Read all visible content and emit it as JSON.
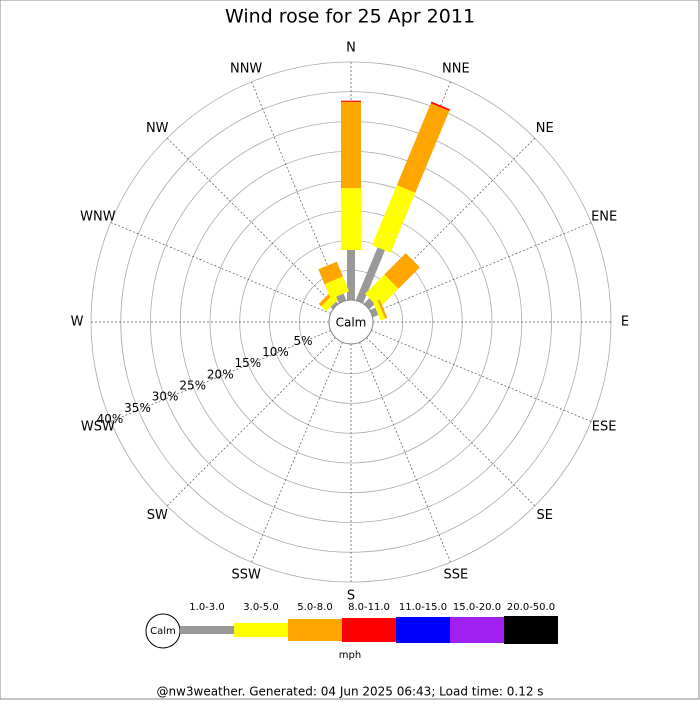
{
  "chart_data": {
    "type": "rose",
    "title": "Wind rose for 25 Apr 2011",
    "categories": [
      "N",
      "NNE",
      "NE",
      "ENE",
      "E",
      "ESE",
      "SE",
      "SSE",
      "S",
      "SSW",
      "SW",
      "WSW",
      "W",
      "WNW",
      "NW",
      "NNW"
    ],
    "center_label": "Calm",
    "unit": "mph",
    "rlim": [
      0,
      40
    ],
    "rticks": [
      {
        "value": 5,
        "label": "5%"
      },
      {
        "value": 10,
        "label": "10%"
      },
      {
        "value": 15,
        "label": "15%"
      },
      {
        "value": 20,
        "label": "20%"
      },
      {
        "value": 25,
        "label": "25%"
      },
      {
        "value": 30,
        "label": "30%"
      },
      {
        "value": 35,
        "label": "35%"
      },
      {
        "value": 40,
        "label": "40%"
      }
    ],
    "series": [
      {
        "name": "1.0-3.0",
        "color": "#999999",
        "values": [
          8.4,
          9.6,
          1.3,
          1,
          0,
          0,
          0,
          0,
          0,
          0,
          0,
          0,
          0,
          0,
          0.5,
          1.2
        ]
      },
      {
        "name": "3.0-5.0",
        "color": "#ffff00",
        "values": [
          10.4,
          10.9,
          4.6,
          0.8,
          0,
          0,
          0,
          0,
          0,
          0,
          0,
          0,
          0,
          0,
          1.2,
          2.7
        ]
      },
      {
        "name": "5.0-8.0",
        "color": "#ffa500",
        "values": [
          14.5,
          14.9,
          5.1,
          0.4,
          0,
          0,
          0,
          0,
          0,
          0,
          0,
          0,
          0,
          0,
          0.6,
          2.7
        ]
      },
      {
        "name": "8.0-11.0",
        "color": "#ff0000",
        "values": [
          0.2,
          0.3,
          0,
          0,
          0,
          0,
          0,
          0,
          0,
          0,
          0,
          0,
          0,
          0,
          0,
          0
        ]
      },
      {
        "name": "11.0-15.0",
        "color": "#0000ff",
        "values": [
          0,
          0,
          0,
          0,
          0,
          0,
          0,
          0,
          0,
          0,
          0,
          0,
          0,
          0,
          0,
          0
        ]
      },
      {
        "name": "15.0-20.0",
        "color": "#a020f0",
        "values": [
          0,
          0,
          0,
          0,
          0,
          0,
          0,
          0,
          0,
          0,
          0,
          0,
          0,
          0,
          0,
          0
        ]
      },
      {
        "name": "20.0-50.0",
        "color": "#000000",
        "values": [
          0,
          0,
          0,
          0,
          0,
          0,
          0,
          0,
          0,
          0,
          0,
          0,
          0,
          0,
          0,
          0
        ]
      }
    ]
  },
  "footer": "@nw3weather. Generated: 04 Jun 2025 06:43; Load time: 0.12 s"
}
